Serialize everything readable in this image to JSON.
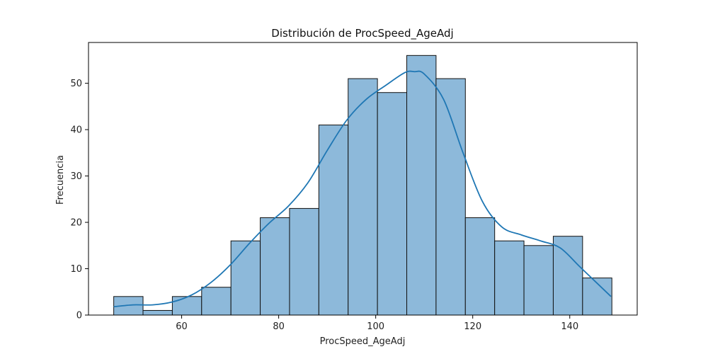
{
  "chart_data": {
    "type": "bar",
    "title": "Distribución de ProcSpeed_AgeAdj",
    "xlabel": "ProcSpeed_AgeAdj",
    "ylabel": "Frecuencia",
    "bin_edges": [
      46.0,
      52.04,
      58.08,
      64.12,
      70.16,
      76.2,
      82.24,
      88.28,
      94.32,
      100.36,
      106.4,
      112.44,
      118.48,
      124.52,
      130.56,
      136.6,
      142.64,
      148.68
    ],
    "values": [
      4,
      1,
      4,
      6,
      16,
      21,
      23,
      41,
      51,
      48,
      56,
      51,
      21,
      16,
      15,
      17,
      8
    ],
    "xlim": [
      40.8,
      153.9
    ],
    "ylim": [
      0,
      58.8
    ],
    "xticks": [
      60,
      80,
      100,
      120,
      140
    ],
    "yticks": [
      0,
      10,
      20,
      30,
      40,
      50
    ],
    "kde": {
      "x": [
        46,
        50,
        54,
        58,
        62,
        66,
        70,
        74,
        78,
        82,
        86,
        90,
        94,
        98,
        102,
        106,
        108,
        110,
        114,
        118,
        122,
        126,
        130,
        134,
        138,
        142,
        146,
        148.5
      ],
      "y": [
        1.8,
        2.2,
        2.2,
        2.8,
        4.3,
        7.0,
        10.8,
        15.5,
        19.8,
        23.5,
        28.5,
        35.5,
        42.0,
        46.5,
        49.5,
        52.3,
        52.5,
        52.0,
        46.5,
        35.0,
        24.5,
        19.0,
        17.3,
        16.0,
        14.5,
        10.5,
        6.5,
        4.0
      ]
    },
    "grid": false,
    "legend": "none",
    "colors": {
      "bar_fill": "#8db9da",
      "bar_edge": "#111111",
      "kde_line": "#1f77b4"
    }
  }
}
